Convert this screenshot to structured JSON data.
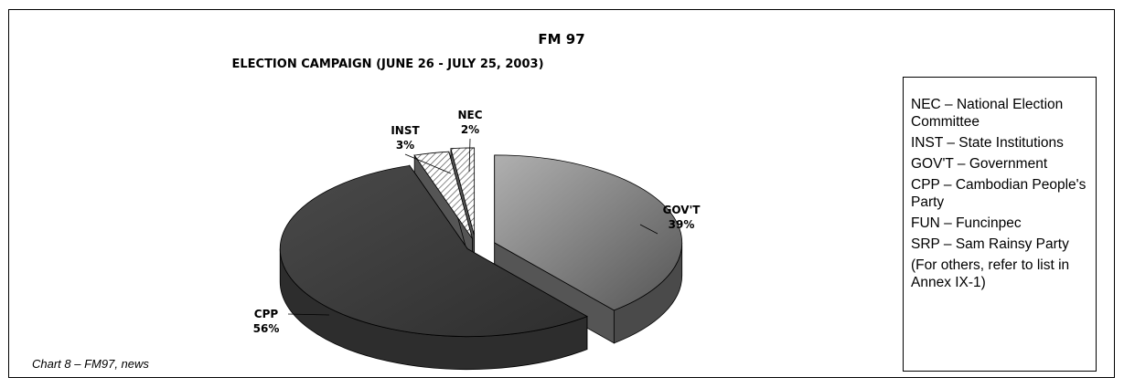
{
  "chart_data": {
    "type": "pie",
    "title": "FM 97",
    "subtitle": "ELECTION CAMPAIGN (JUNE 26 - JULY 25, 2003)",
    "slices": [
      {
        "label": "GOV'T",
        "value": 39,
        "display": "39%",
        "color": "#8a8a8a"
      },
      {
        "label": "CPP",
        "value": 56,
        "display": "56%",
        "color": "#3c3c3c"
      },
      {
        "label": "INST",
        "value": 3,
        "display": "3%",
        "color": "#6a6a6a"
      },
      {
        "label": "NEC",
        "value": 2,
        "display": "2%",
        "color": "#d8d8d8"
      }
    ]
  },
  "legend": {
    "items": [
      "NEC – National Election Committee",
      "INST – State Institutions",
      "GOV'T – Government",
      "CPP – Cambodian People's Party",
      "FUN – Funcinpec",
      "SRP – Sam Rainsy Party",
      "(For others, refer to list in Annex IX-1)"
    ]
  },
  "caption": "Chart 8 – FM97, news"
}
